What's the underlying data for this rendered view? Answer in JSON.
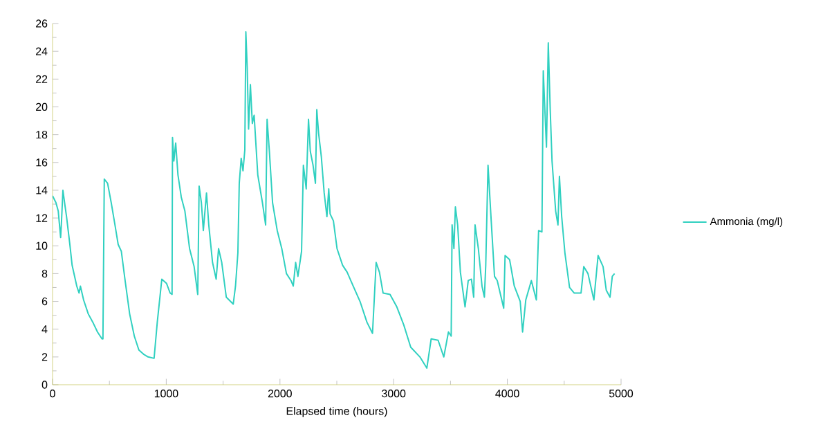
{
  "chart_data": {
    "type": "line",
    "xlabel": "Elapsed time (hours)",
    "xlim": [
      0,
      5000
    ],
    "xticks": [
      0,
      1000,
      2000,
      3000,
      4000,
      5000
    ],
    "ylim": [
      0,
      26
    ],
    "yticks": [
      0,
      2,
      4,
      6,
      8,
      10,
      12,
      14,
      16,
      18,
      20,
      22,
      24,
      26
    ],
    "legend": "right",
    "grid": false,
    "marker": "none",
    "line_style": "solid",
    "series": [
      {
        "name": "Ammonia (mg/l)",
        "color": "#30d0c0",
        "x": [
          0,
          30,
          50,
          71,
          79,
          91,
          111,
          123,
          152,
          172,
          213,
          233,
          245,
          273,
          314,
          354,
          395,
          435,
          443,
          455,
          484,
          516,
          549,
          577,
          605,
          638,
          678,
          719,
          759,
          800,
          840,
          893,
          921,
          961,
          1002,
          1034,
          1051,
          1055,
          1067,
          1083,
          1103,
          1132,
          1164,
          1205,
          1245,
          1277,
          1289,
          1309,
          1326,
          1354,
          1374,
          1407,
          1439,
          1460,
          1488,
          1528,
          1589,
          1609,
          1630,
          1642,
          1659,
          1675,
          1691,
          1700,
          1712,
          1724,
          1740,
          1757,
          1773,
          1805,
          1846,
          1874,
          1887,
          1907,
          1935,
          1976,
          2016,
          2057,
          2097,
          2117,
          2138,
          2158,
          2190,
          2206,
          2231,
          2251,
          2267,
          2291,
          2312,
          2324,
          2340,
          2364,
          2389,
          2413,
          2429,
          2441,
          2470,
          2502,
          2551,
          2591,
          2644,
          2704,
          2765,
          2814,
          2846,
          2875,
          2907,
          2968,
          3028,
          3089,
          3150,
          3231,
          3292,
          3330,
          3391,
          3441,
          3482,
          3506,
          3514,
          3530,
          3543,
          3563,
          3587,
          3628,
          3656,
          3684,
          3704,
          3716,
          3745,
          3777,
          3798,
          3810,
          3830,
          3858,
          3887,
          3911,
          3968,
          3980,
          4020,
          4061,
          4113,
          4134,
          4162,
          4211,
          4255,
          4275,
          4304,
          4316,
          4332,
          4344,
          4360,
          4377,
          4393,
          4425,
          4445,
          4458,
          4478,
          4506,
          4547,
          4587,
          4648,
          4672,
          4709,
          4761,
          4798,
          4842,
          4870,
          4903,
          4923,
          4943
        ],
        "values": [
          13.6,
          13.1,
          12.5,
          10.6,
          11.8,
          14.0,
          12.8,
          12.1,
          10.1,
          8.6,
          7.1,
          6.6,
          7.1,
          6.1,
          5.1,
          4.5,
          3.8,
          3.3,
          3.3,
          14.8,
          14.5,
          13.1,
          11.5,
          10.1,
          9.6,
          7.5,
          5.1,
          3.5,
          2.5,
          2.2,
          2.0,
          1.9,
          4.5,
          7.6,
          7.3,
          6.6,
          6.5,
          17.8,
          16.1,
          17.4,
          15.1,
          13.5,
          12.5,
          9.8,
          8.5,
          6.5,
          14.3,
          13.1,
          11.1,
          13.8,
          11.5,
          8.8,
          7.6,
          9.8,
          8.8,
          6.3,
          5.8,
          7.1,
          9.5,
          14.5,
          16.3,
          15.4,
          16.9,
          25.4,
          22.8,
          18.4,
          21.6,
          18.8,
          19.4,
          15.1,
          13.1,
          11.5,
          19.1,
          16.8,
          13.1,
          11.1,
          9.8,
          8.0,
          7.5,
          7.1,
          8.8,
          7.8,
          9.6,
          15.8,
          14.1,
          19.1,
          16.8,
          15.8,
          14.5,
          19.8,
          18.1,
          16.4,
          13.8,
          12.1,
          14.1,
          12.3,
          11.8,
          9.8,
          8.6,
          8.1,
          7.1,
          6.0,
          4.5,
          3.7,
          8.8,
          8.1,
          6.6,
          6.5,
          5.6,
          4.3,
          2.7,
          2.0,
          1.2,
          3.3,
          3.2,
          2.0,
          3.8,
          3.5,
          11.5,
          9.8,
          12.8,
          11.5,
          8.1,
          5.6,
          7.5,
          7.6,
          6.3,
          11.5,
          9.8,
          7.1,
          6.3,
          8.6,
          15.8,
          11.8,
          7.8,
          7.5,
          5.5,
          9.3,
          9.0,
          7.1,
          6.0,
          3.8,
          6.1,
          7.5,
          6.1,
          11.1,
          11.0,
          22.6,
          19.4,
          17.1,
          24.6,
          19.8,
          16.1,
          12.5,
          11.5,
          15.0,
          12.1,
          9.5,
          7.0,
          6.6,
          6.6,
          8.5,
          8.0,
          6.1,
          9.3,
          8.5,
          6.8,
          6.3,
          7.8,
          8.0
        ]
      }
    ]
  }
}
